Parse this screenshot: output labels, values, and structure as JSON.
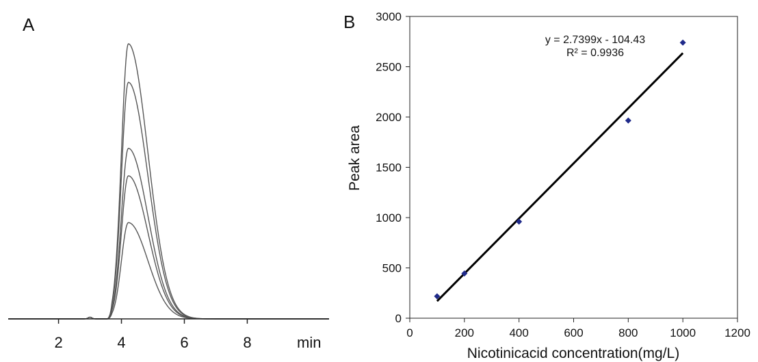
{
  "panels": {
    "a_label": "A",
    "b_label": "B"
  },
  "chart_data": [
    {
      "type": "line",
      "panel": "A",
      "title": "",
      "xlabel": "min",
      "ylabel": "",
      "xlim": [
        0.4,
        10.6
      ],
      "ylim": [
        0,
        1
      ],
      "xticks": [
        2,
        4,
        6,
        8
      ],
      "xtick_labels": [
        "2",
        "4",
        "6",
        "8"
      ],
      "grid": false,
      "peak": {
        "center": 4.22,
        "rise_width": 0.22,
        "tail_width": 0.62,
        "start": 3.55
      },
      "small_bump": {
        "x": 3.0,
        "height": 0.006
      },
      "series": [
        {
          "peak_height": 1.0,
          "color": "#555555"
        },
        {
          "peak_height": 0.86,
          "color": "#555555"
        },
        {
          "peak_height": 0.62,
          "color": "#555555"
        },
        {
          "peak_height": 0.52,
          "color": "#555555"
        },
        {
          "peak_height": 0.35,
          "color": "#555555"
        }
      ]
    },
    {
      "type": "scatter",
      "panel": "B",
      "title": "",
      "xlabel": "Nicotinicacid concentration(mg/L)",
      "ylabel": "Peak area",
      "xlim": [
        0,
        1200
      ],
      "ylim": [
        0,
        3000
      ],
      "xticks": [
        0,
        200,
        400,
        600,
        800,
        1000,
        1200
      ],
      "yticks": [
        0,
        500,
        1000,
        1500,
        2000,
        2500,
        3000
      ],
      "grid": false,
      "points": [
        {
          "x": 100,
          "y": 218
        },
        {
          "x": 200,
          "y": 445
        },
        {
          "x": 400,
          "y": 960
        },
        {
          "x": 800,
          "y": 1965
        },
        {
          "x": 1000,
          "y": 2740
        }
      ],
      "point_color": "#1f2a8a",
      "trendline": {
        "slope": 2.7399,
        "intercept": -104.43,
        "x_range": [
          100,
          1000
        ],
        "color": "#000000"
      },
      "annotations": {
        "equation": "y = 2.7399x - 104.43",
        "r_squared": "R² = 0.9936"
      }
    }
  ]
}
